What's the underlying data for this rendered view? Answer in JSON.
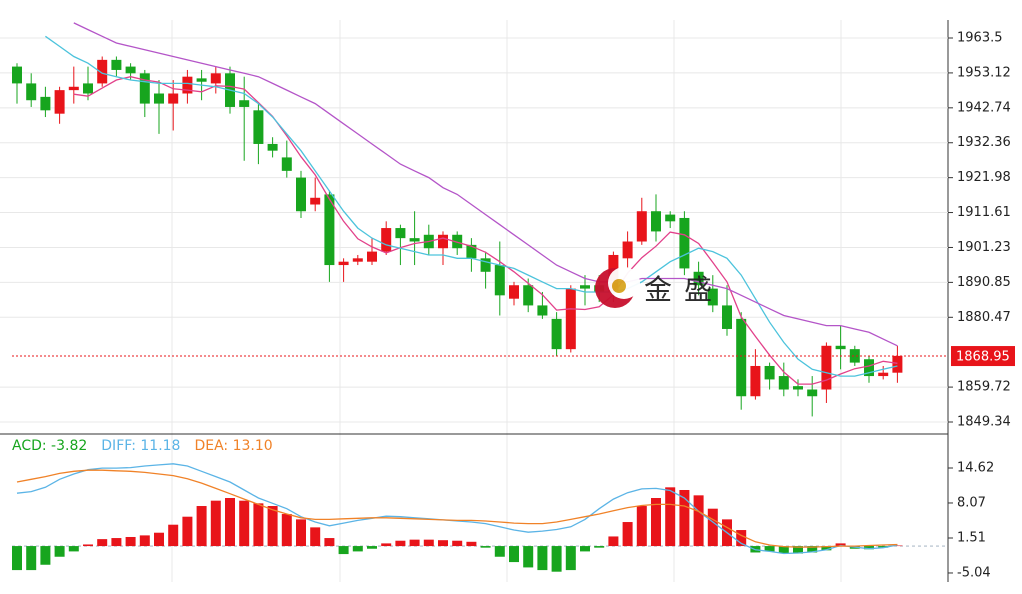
{
  "chart_data": [
    {
      "type": "candlestick",
      "ylim": [
        1846.37,
        1968.85
      ],
      "yticks": [
        1963.5,
        1953.12,
        1942.74,
        1932.36,
        1921.98,
        1911.61,
        1901.23,
        1890.85,
        1880.47,
        1859.72,
        1849.34
      ],
      "grid": true,
      "up_color": "#e8141a",
      "down_color": "#17a51e",
      "open": [
        1955,
        1950,
        1946,
        1941,
        1948,
        1950,
        1950,
        1957,
        1955,
        1953,
        1947,
        1944,
        1947,
        1951.5,
        1950,
        1953,
        1945,
        1942,
        1932,
        1928,
        1922,
        1914,
        1917,
        1896,
        1897,
        1897,
        1900,
        1907,
        1904,
        1905,
        1901,
        1905,
        1902,
        1898,
        1896,
        1886,
        1890,
        1884,
        1880,
        1871,
        1890,
        1890,
        1888,
        1898,
        1903,
        1912,
        1911,
        1910,
        1894,
        1889,
        1884,
        1880,
        1857,
        1866,
        1863,
        1860,
        1859,
        1859,
        1872,
        1871,
        1868,
        1863,
        1864
      ],
      "high": [
        1956,
        1953,
        1949,
        1949,
        1955,
        1955,
        1958,
        1958,
        1956,
        1954,
        1951,
        1951,
        1954,
        1954,
        1955,
        1955,
        1952,
        1944,
        1934,
        1933,
        1924,
        1922,
        1918,
        1898,
        1899,
        1904,
        1909,
        1908,
        1912,
        1908,
        1906,
        1906,
        1904,
        1900,
        1903,
        1891,
        1892,
        1888,
        1882,
        1890,
        1893,
        1893,
        1900,
        1906,
        1916,
        1917,
        1912,
        1912,
        1897,
        1893,
        1890,
        1882,
        1871,
        1867,
        1867,
        1862,
        1863,
        1873,
        1878,
        1872,
        1869,
        1866,
        1872
      ],
      "low": [
        1944,
        1943,
        1940,
        1938,
        1944,
        1945,
        1949,
        1952,
        1951,
        1940,
        1935,
        1936,
        1944,
        1945,
        1947,
        1941,
        1927,
        1926,
        1928,
        1922,
        1910,
        1912,
        1891,
        1891,
        1896,
        1896,
        1899,
        1896,
        1896,
        1899,
        1896,
        1899,
        1894,
        1889,
        1881,
        1884,
        1882,
        1880,
        1869,
        1870,
        1884,
        1885,
        1885,
        1895,
        1902,
        1903,
        1907,
        1893,
        1887,
        1882,
        1875,
        1853,
        1856,
        1859,
        1857,
        1857,
        1851,
        1855,
        1865,
        1866,
        1861,
        1862,
        1861
      ],
      "close": [
        1950,
        1945,
        1942,
        1948,
        1949,
        1947,
        1957,
        1954,
        1953,
        1944,
        1944,
        1947,
        1952,
        1950.5,
        1953,
        1943,
        1943,
        1932,
        1930,
        1924,
        1912,
        1916,
        1896,
        1897,
        1898,
        1900,
        1907,
        1904,
        1903,
        1901,
        1905,
        1901,
        1898,
        1894,
        1887,
        1890,
        1884,
        1881,
        1871,
        1889,
        1889,
        1888,
        1899,
        1903,
        1912,
        1906,
        1909,
        1895,
        1890,
        1884,
        1877,
        1857,
        1866,
        1862,
        1859,
        1859,
        1857,
        1872,
        1871,
        1867,
        1863,
        1864,
        1869
      ],
      "series": [
        {
          "color": "#e2418a",
          "values": [
            null,
            null,
            null,
            null,
            1946.8,
            1946.2,
            1948.6,
            1951,
            1952,
            1951,
            1950.4,
            1948.4,
            1948,
            1947.5,
            1949.3,
            1949.1,
            1948.3,
            1944.3,
            1940.2,
            1934.4,
            1928.2,
            1922.8,
            1915.6,
            1909,
            1903.8,
            1901.4,
            1899.6,
            1901.2,
            1902.4,
            1903,
            1904,
            1902.8,
            1901.6,
            1899.8,
            1897,
            1894,
            1890.6,
            1887.2,
            1882.6,
            1883,
            1882.8,
            1883.6,
            1887.2,
            1893.6,
            1898.2,
            1901.6,
            1905.8,
            1905,
            1902.4,
            1896.8,
            1891,
            1880.6,
            1874.8,
            1869.2,
            1864.2,
            1860.6,
            1860.6,
            1861.8,
            1863.6,
            1865.2,
            1866,
            1867.4,
            1866.8
          ]
        },
        {
          "color": "#4cc3dc",
          "values": [
            null,
            null,
            1964,
            1961,
            1958,
            1956,
            1953,
            1952,
            1951,
            1950.5,
            1950,
            1950,
            1950,
            1949.5,
            1949,
            1948,
            1947,
            1944,
            1940,
            1935,
            1930,
            1924,
            1918,
            1912,
            1907,
            1904,
            1902,
            1901,
            1900,
            1899,
            1899,
            1898,
            1898,
            1897,
            1896,
            1895,
            1893,
            1891,
            1889,
            1889,
            1888,
            1888,
            1888,
            1889,
            1891,
            1894,
            1897,
            1899,
            1901,
            1900,
            1898,
            1893,
            1886,
            1879,
            1873,
            1868,
            1865,
            1864,
            1863,
            1863,
            1864,
            1865,
            1866
          ]
        },
        {
          "color": "#b455c8",
          "values": [
            null,
            null,
            null,
            null,
            1968,
            1966,
            1964,
            1962,
            1961,
            1960,
            1959,
            1958,
            1957,
            1956,
            1955,
            1954,
            1953,
            1952,
            1950,
            1948,
            1946,
            1944,
            1941,
            1938,
            1935,
            1932,
            1929,
            1926,
            1924,
            1922,
            1919,
            1917,
            1914,
            1911,
            1908,
            1905,
            1902,
            1899,
            1896,
            1894,
            1892,
            1891,
            1891,
            1891,
            1892,
            1892,
            1892,
            1892,
            1891,
            1890,
            1889,
            1887,
            1885,
            1883,
            1881,
            1880,
            1879,
            1878,
            1878,
            1877,
            1876,
            1874,
            1872
          ]
        }
      ],
      "last_price": 1868.95,
      "watermark": "金盛"
    },
    {
      "type": "macd",
      "ylim": [
        -6.73,
        20.8
      ],
      "yticks": [
        14.62,
        8.07,
        1.51,
        -5.04
      ],
      "annotations": [
        {
          "text": "ACD: -3.82",
          "color": "#17a51e"
        },
        {
          "text": "DIFF: 11.18",
          "color": "#5bb4e6"
        },
        {
          "text": "DEA: 13.10",
          "color": "#f08228"
        }
      ],
      "up_color": "#e8141a",
      "down_color": "#17a51e",
      "values": [
        -4.5,
        -4.5,
        -3.5,
        -2,
        -1,
        0.3,
        1.3,
        1.5,
        1.7,
        2,
        2.5,
        4,
        5.5,
        7.5,
        8.5,
        9,
        8.5,
        8,
        7.5,
        6,
        5,
        3.5,
        1.5,
        -1.5,
        -1,
        -0.5,
        0.5,
        1,
        1.2,
        1.2,
        1.1,
        1,
        0.8,
        -0.3,
        -2,
        -3,
        -4,
        -4.5,
        -4.8,
        -4.5,
        -1,
        -0.3,
        1.8,
        4.5,
        7.5,
        9,
        11,
        10.5,
        9.5,
        7,
        5,
        3,
        -1.2,
        -1,
        -1.3,
        -1.4,
        -1.2,
        -0.8,
        0.5,
        -0.5,
        -0.6,
        -0.3,
        0.1
      ],
      "series": [
        {
          "color": "#5bb4e6",
          "values": [
            9.9,
            10.2,
            11,
            12.5,
            13.5,
            14.3,
            14.6,
            14.6,
            14.7,
            15,
            15.2,
            15.4,
            15,
            14,
            13,
            12,
            10.5,
            9,
            8,
            7,
            5.5,
            4.5,
            3.8,
            4.3,
            4.8,
            5.2,
            5.6,
            5.5,
            5.3,
            5.1,
            4.9,
            4.7,
            4.5,
            4.2,
            3.6,
            3,
            2.6,
            2.8,
            3.1,
            3.6,
            5,
            7,
            8.8,
            10,
            10.7,
            10.8,
            10.4,
            9,
            6.5,
            4.5,
            2.5,
            0.5,
            -0.7,
            -1,
            -1.4,
            -1.3,
            -1.1,
            -0.7,
            0.1,
            -0.2,
            -0.5,
            -0.3,
            0.2
          ]
        },
        {
          "color": "#f08228",
          "values": [
            12,
            12.5,
            13,
            13.6,
            14,
            14.2,
            14.2,
            14.1,
            14,
            13.8,
            13.5,
            13.2,
            12.6,
            11.8,
            10.8,
            9.8,
            8.8,
            7.8,
            6.8,
            6,
            5.3,
            5,
            5,
            5.1,
            5.2,
            5.3,
            5.3,
            5.2,
            5.1,
            5,
            4.9,
            4.8,
            4.8,
            4.7,
            4.5,
            4.3,
            4.2,
            4.2,
            4.5,
            5,
            5.5,
            6,
            6.6,
            7.2,
            7.6,
            7.8,
            7.8,
            7.5,
            6.5,
            5,
            3.5,
            2,
            0.8,
            0.2,
            -0.1,
            -0.2,
            -0.2,
            -0.1,
            0,
            0,
            0.1,
            0.2,
            0.3
          ]
        }
      ]
    }
  ]
}
